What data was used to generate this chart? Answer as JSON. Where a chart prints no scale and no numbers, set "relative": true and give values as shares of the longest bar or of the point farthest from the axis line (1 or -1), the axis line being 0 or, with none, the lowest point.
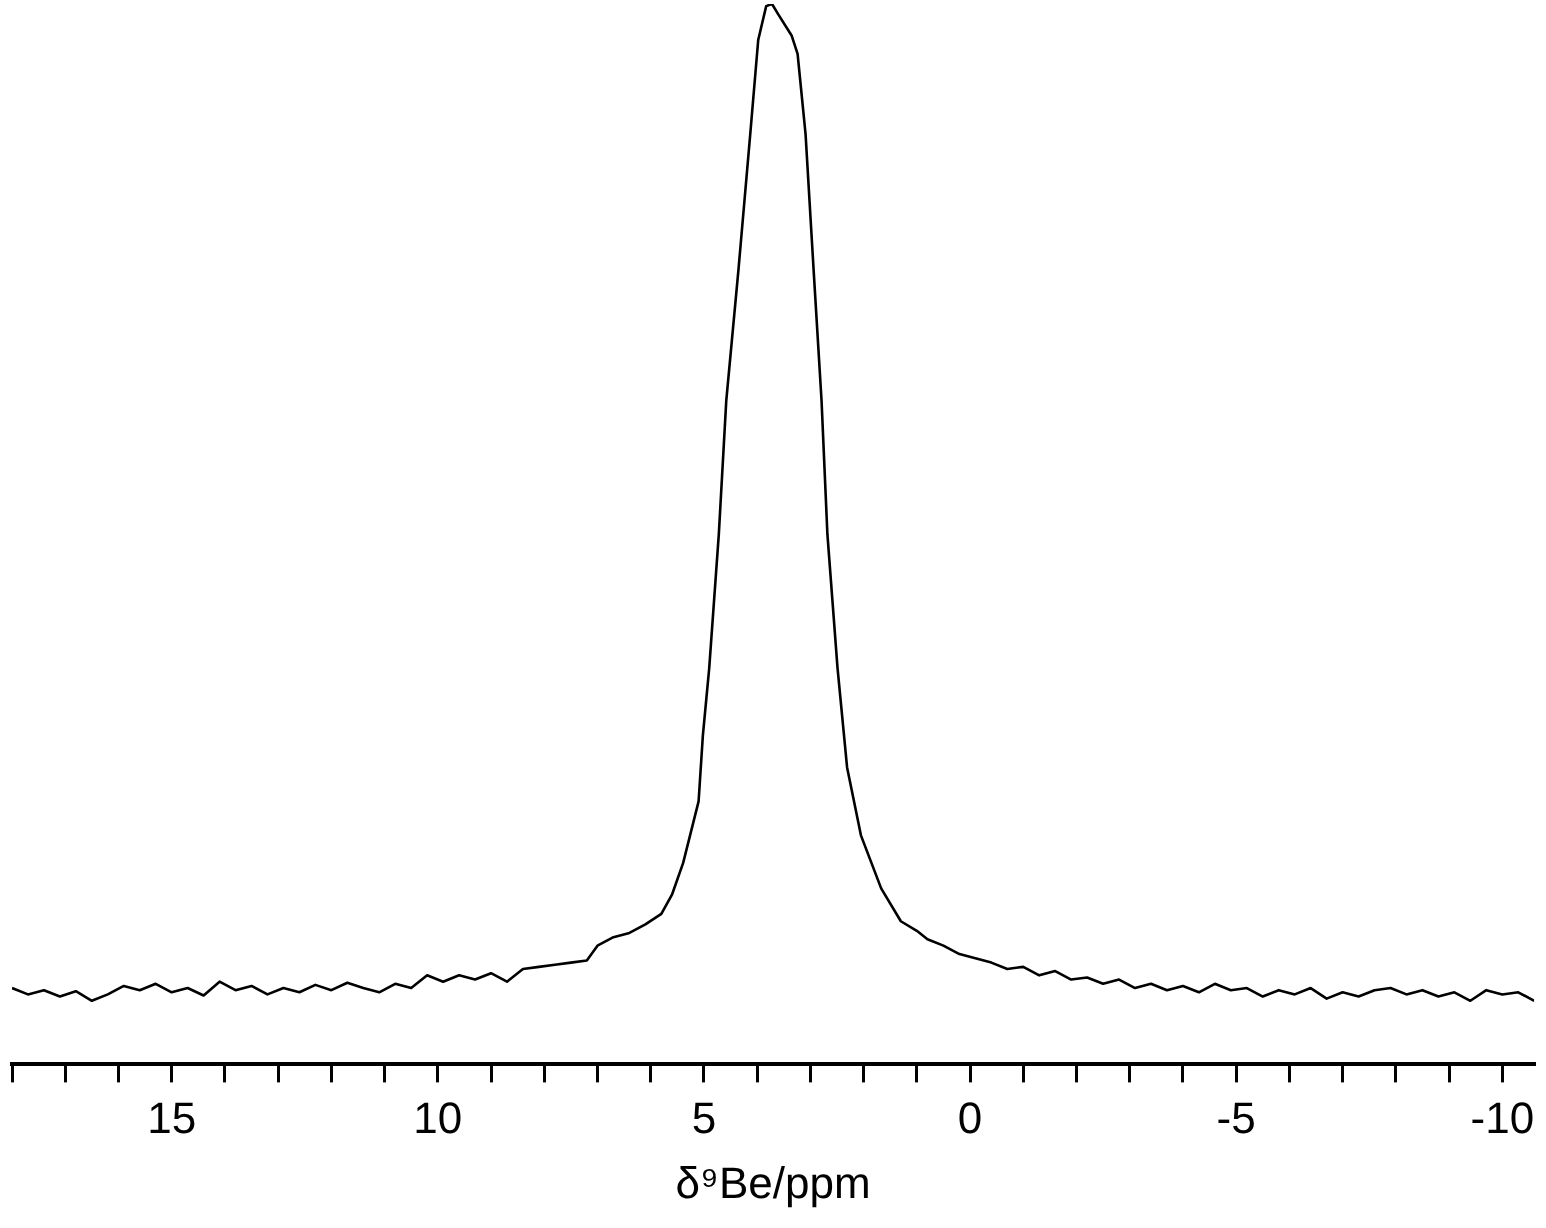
{
  "chart_data": {
    "type": "line",
    "xlabel": "δ⁹Be/ppm",
    "relative": true,
    "color": "#000000",
    "xlim": [
      18,
      -10.6
    ],
    "xticks": [
      {
        "value": 18,
        "label": null
      },
      {
        "value": 17,
        "label": null
      },
      {
        "value": 16,
        "label": null
      },
      15,
      {
        "value": 14,
        "label": null
      },
      {
        "value": 13,
        "label": null
      },
      {
        "value": 12,
        "label": null
      },
      {
        "value": 11,
        "label": null
      },
      10,
      {
        "value": 9,
        "label": null
      },
      {
        "value": 8,
        "label": null
      },
      {
        "value": 7,
        "label": null
      },
      {
        "value": 6,
        "label": null
      },
      5,
      {
        "value": 4,
        "label": null
      },
      {
        "value": 3,
        "label": null
      },
      {
        "value": 2,
        "label": null
      },
      {
        "value": 1,
        "label": null
      },
      0,
      {
        "value": -1,
        "label": null
      },
      {
        "value": -2,
        "label": null
      },
      {
        "value": -3,
        "label": null
      },
      {
        "value": -4,
        "label": null
      },
      -5,
      {
        "value": -6,
        "label": null
      },
      {
        "value": -7,
        "label": null
      },
      {
        "value": -8,
        "label": null
      },
      {
        "value": -9,
        "label": null
      },
      -10
    ],
    "x": [
      18.0,
      17.7,
      17.4,
      17.1,
      16.8,
      16.5,
      16.2,
      15.9,
      15.6,
      15.3,
      15.0,
      14.7,
      14.4,
      14.1,
      13.8,
      13.5,
      13.2,
      12.9,
      12.6,
      12.3,
      12.0,
      11.7,
      11.4,
      11.1,
      10.8,
      10.5,
      10.2,
      9.9,
      9.6,
      9.3,
      9.0,
      8.7,
      8.4,
      8.1,
      7.8,
      7.5,
      7.2,
      7.0,
      6.7,
      6.4,
      6.1,
      5.8,
      5.6,
      5.39,
      5.1,
      5.02,
      4.9,
      4.72,
      4.58,
      4.35,
      4.13,
      3.98,
      3.83,
      3.72,
      3.6,
      3.35,
      3.24,
      3.09,
      2.94,
      2.79,
      2.68,
      2.49,
      2.31,
      2.05,
      1.67,
      1.3,
      1.0,
      0.8,
      0.5,
      0.2,
      -0.1,
      -0.4,
      -0.7,
      -1.0,
      -1.3,
      -1.6,
      -1.9,
      -2.2,
      -2.5,
      -2.8,
      -3.1,
      -3.4,
      -3.7,
      -4.0,
      -4.3,
      -4.6,
      -4.9,
      -5.2,
      -5.5,
      -5.8,
      -6.1,
      -6.4,
      -6.7,
      -7.0,
      -7.3,
      -7.6,
      -7.9,
      -8.2,
      -8.5,
      -8.8,
      -9.1,
      -9.4,
      -9.7,
      -10.0,
      -10.3,
      -10.6
    ],
    "values": [
      0.072,
      0.066,
      0.07,
      0.064,
      0.069,
      0.06,
      0.066,
      0.074,
      0.07,
      0.076,
      0.068,
      0.072,
      0.065,
      0.078,
      0.07,
      0.074,
      0.066,
      0.072,
      0.068,
      0.075,
      0.07,
      0.077,
      0.072,
      0.068,
      0.076,
      0.072,
      0.084,
      0.078,
      0.084,
      0.08,
      0.086,
      0.078,
      0.09,
      0.092,
      0.094,
      0.096,
      0.098,
      0.112,
      0.12,
      0.124,
      0.132,
      0.142,
      0.16,
      0.19,
      0.248,
      0.31,
      0.374,
      0.5,
      0.626,
      0.75,
      0.877,
      0.966,
      0.998,
      1,
      0.99,
      0.97,
      0.953,
      0.877,
      0.75,
      0.626,
      0.5,
      0.374,
      0.28,
      0.216,
      0.166,
      0.135,
      0.126,
      0.118,
      0.112,
      0.104,
      0.1,
      0.096,
      0.09,
      0.092,
      0.084,
      0.088,
      0.08,
      0.082,
      0.076,
      0.08,
      0.072,
      0.076,
      0.07,
      0.074,
      0.068,
      0.076,
      0.07,
      0.072,
      0.064,
      0.07,
      0.066,
      0.072,
      0.062,
      0.068,
      0.064,
      0.07,
      0.072,
      0.066,
      0.07,
      0.064,
      0.068,
      0.06,
      0.07,
      0.066,
      0.068,
      0.06
    ]
  }
}
